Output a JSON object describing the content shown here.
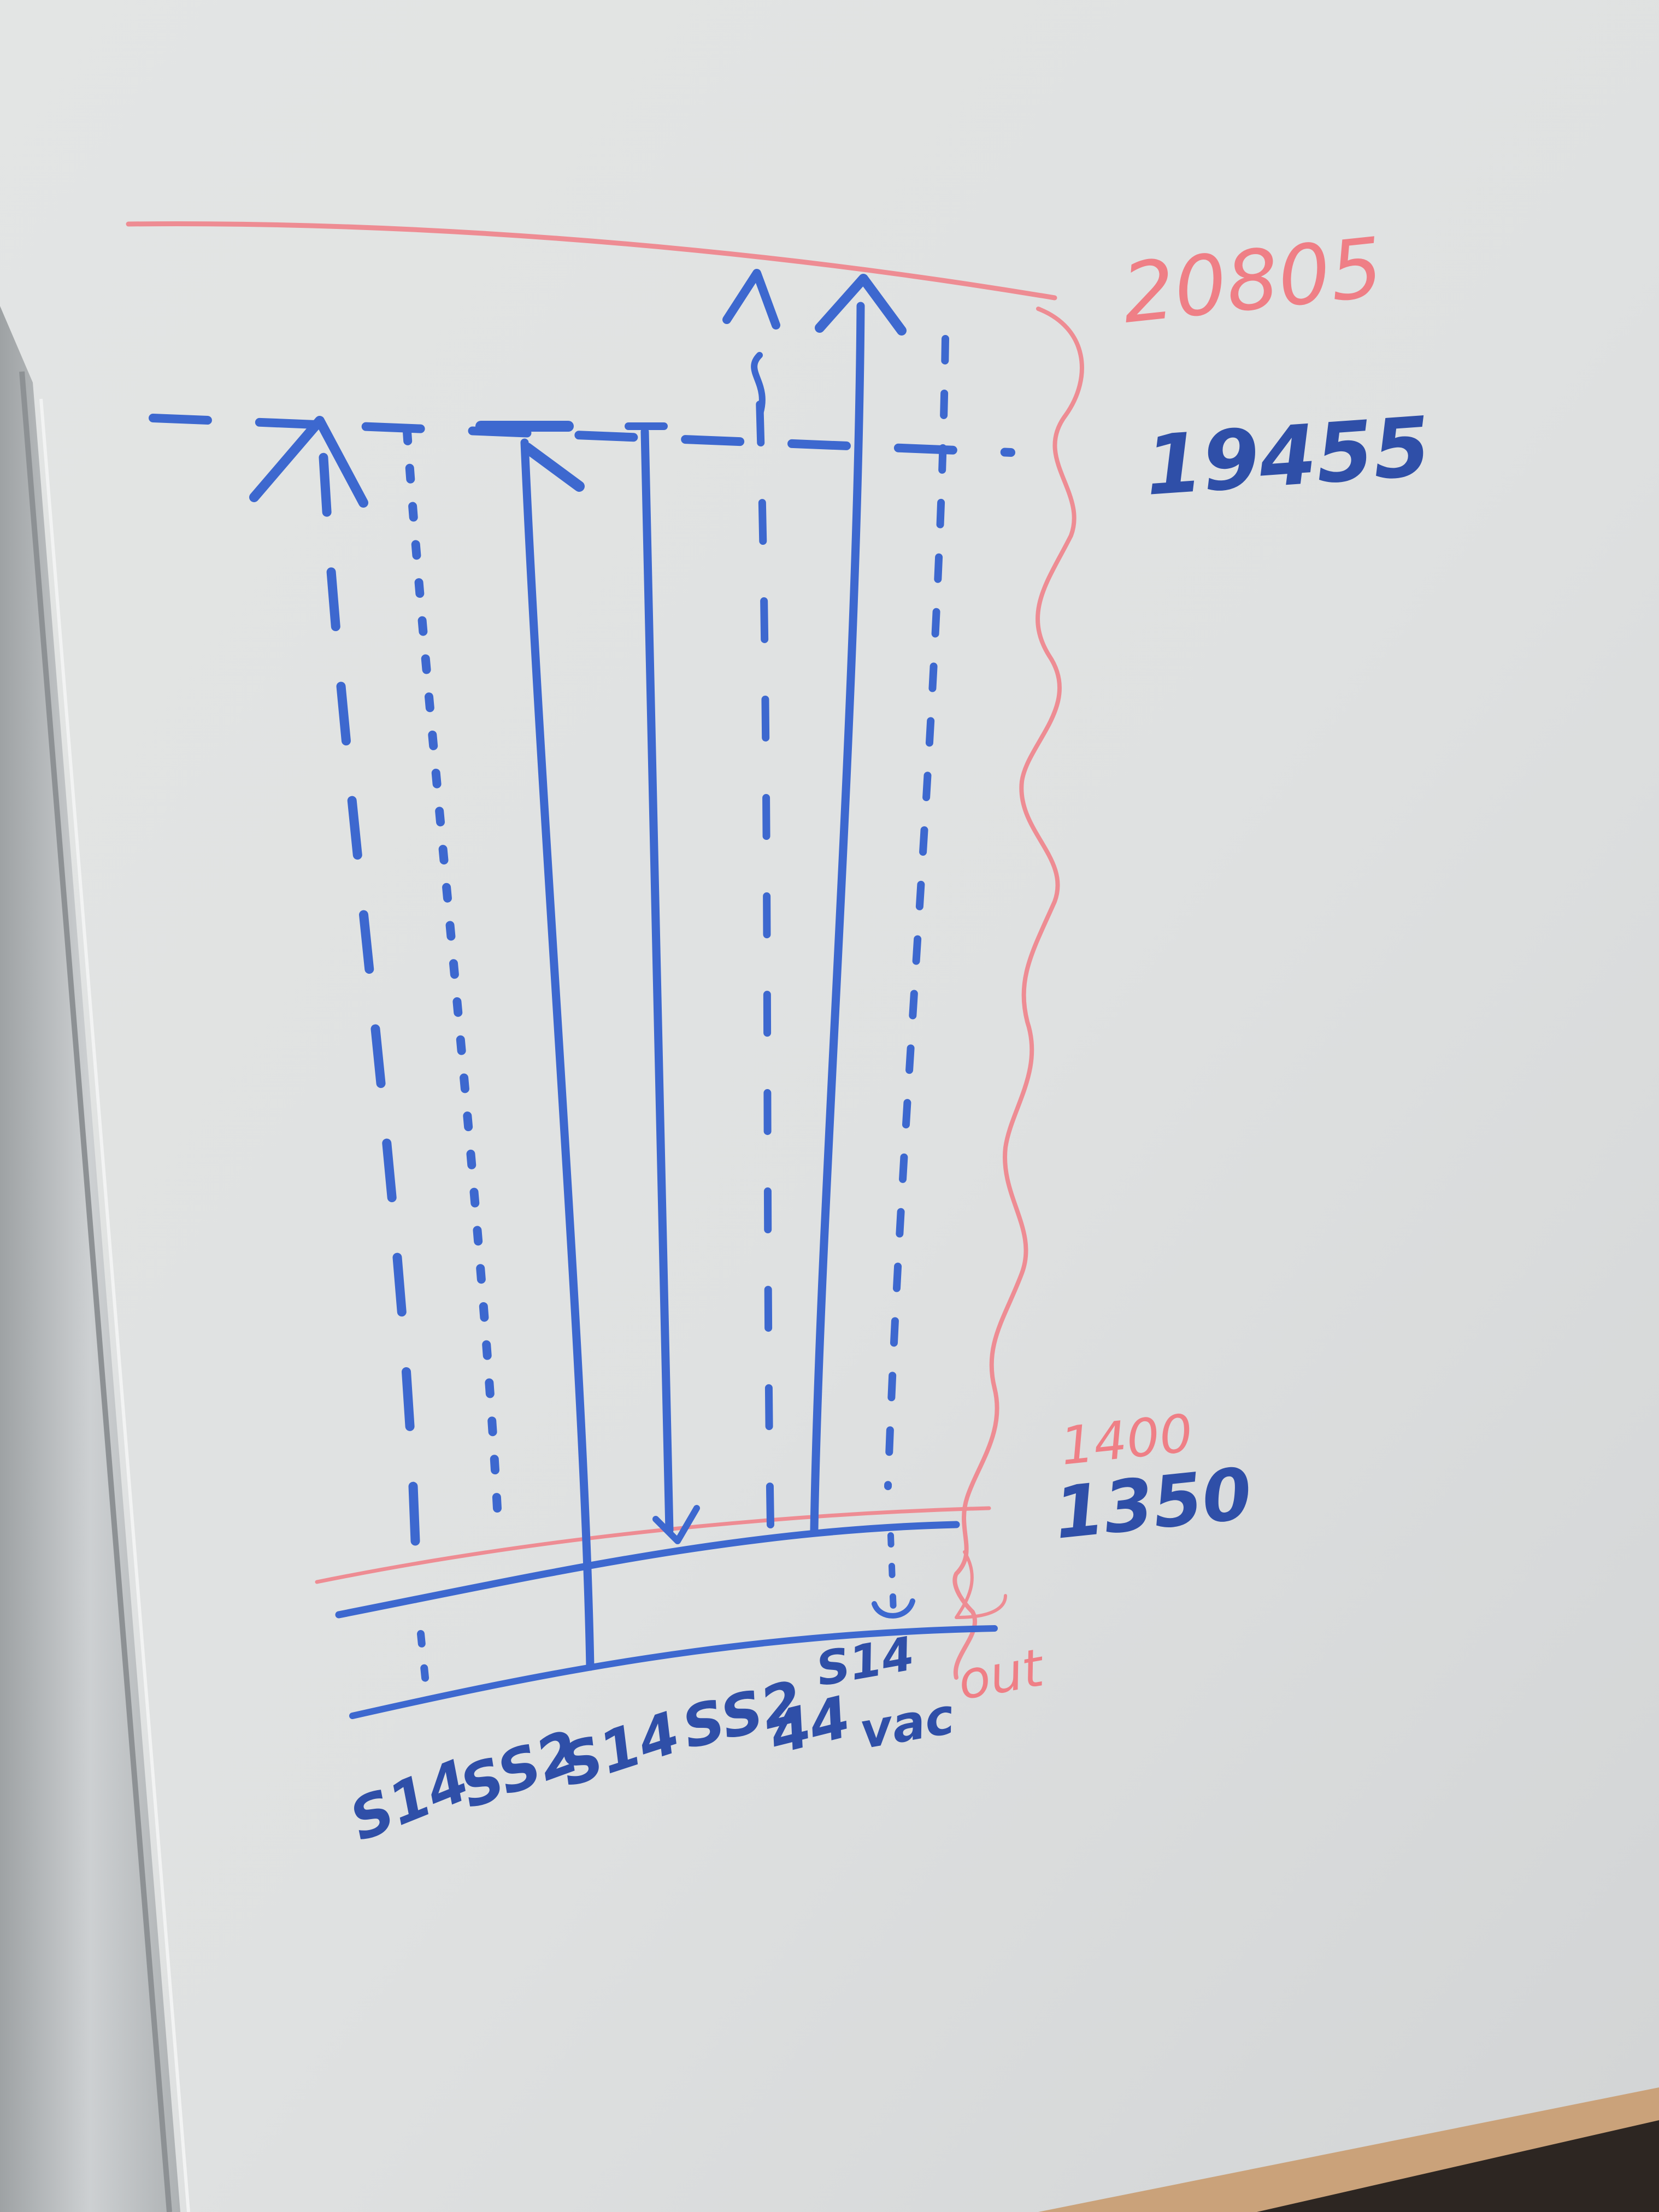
{
  "levels": {
    "top_value": "20805",
    "upper_value": "19455",
    "lower_value_1": "1400",
    "lower_value_2": "1350"
  },
  "side_label": "out",
  "column_labels": [
    "S14",
    "SS2",
    "S14",
    "SS2",
    "44",
    "S14",
    "vac"
  ],
  "colors": {
    "ink_blue": "#3d68cf",
    "ink_red": "#ee8c93",
    "board": "#e4e6e6",
    "frame": "#bfc2c4"
  }
}
